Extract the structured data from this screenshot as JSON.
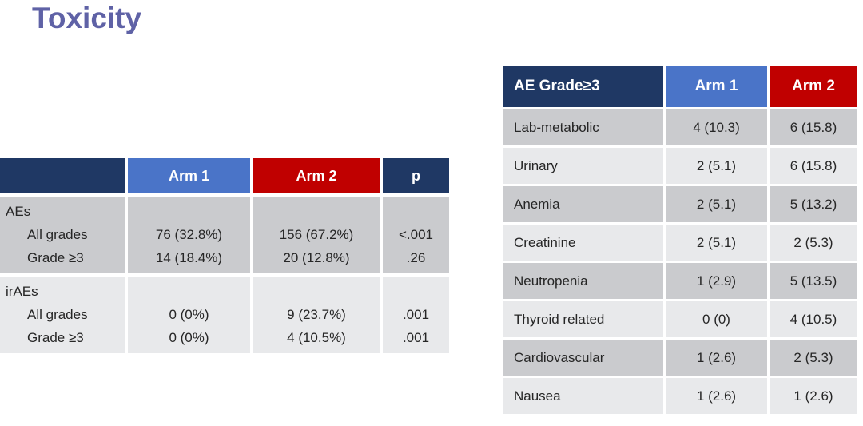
{
  "slide": {
    "title": "Toxicity"
  },
  "colors": {
    "title": "#5F62A6",
    "header_navy": "#1F3864",
    "arm1_blue": "#4A74C8",
    "arm2_red": "#C00000",
    "row_dark": "#CACBCE",
    "row_light": "#E8E9EB",
    "text": "#262626"
  },
  "ae_summary_table": {
    "header": {
      "col0": "",
      "arm1": "Arm 1",
      "arm2": "Arm 2",
      "p": "p"
    },
    "groups": [
      {
        "label": "AEs",
        "rows": [
          {
            "label": "All grades",
            "arm1": "76 (32.8%)",
            "arm2": "156 (67.2%)",
            "p": "<.001"
          },
          {
            "label": "Grade ≥3",
            "arm1": "14 (18.4%)",
            "arm2": "20 (12.8%)",
            "p": ".26"
          }
        ]
      },
      {
        "label": "irAEs",
        "rows": [
          {
            "label": "All grades",
            "arm1": "0 (0%)",
            "arm2": "9 (23.7%)",
            "p": ".001"
          },
          {
            "label": "Grade ≥3",
            "arm1": "0 (0%)",
            "arm2": "4 (10.5%)",
            "p": ".001"
          }
        ]
      }
    ]
  },
  "ae_grade3_table": {
    "header": {
      "label": "AE Grade≥3",
      "arm1": "Arm 1",
      "arm2": "Arm 2"
    },
    "rows": [
      {
        "label": "Lab-metabolic",
        "arm1": "4 (10.3)",
        "arm2": "6 (15.8)"
      },
      {
        "label": "Urinary",
        "arm1": "2 (5.1)",
        "arm2": "6 (15.8)"
      },
      {
        "label": "Anemia",
        "arm1": "2 (5.1)",
        "arm2": "5 (13.2)"
      },
      {
        "label": "Creatinine",
        "arm1": "2 (5.1)",
        "arm2": "2 (5.3)"
      },
      {
        "label": "Neutropenia",
        "arm1": "1 (2.9)",
        "arm2": "5 (13.5)"
      },
      {
        "label": "Thyroid related",
        "arm1": "0 (0)",
        "arm2": "4 (10.5)"
      },
      {
        "label": "Cardiovascular",
        "arm1": "1 (2.6)",
        "arm2": "2 (5.3)"
      },
      {
        "label": "Nausea",
        "arm1": "1 (2.6)",
        "arm2": "1 (2.6)"
      }
    ]
  }
}
